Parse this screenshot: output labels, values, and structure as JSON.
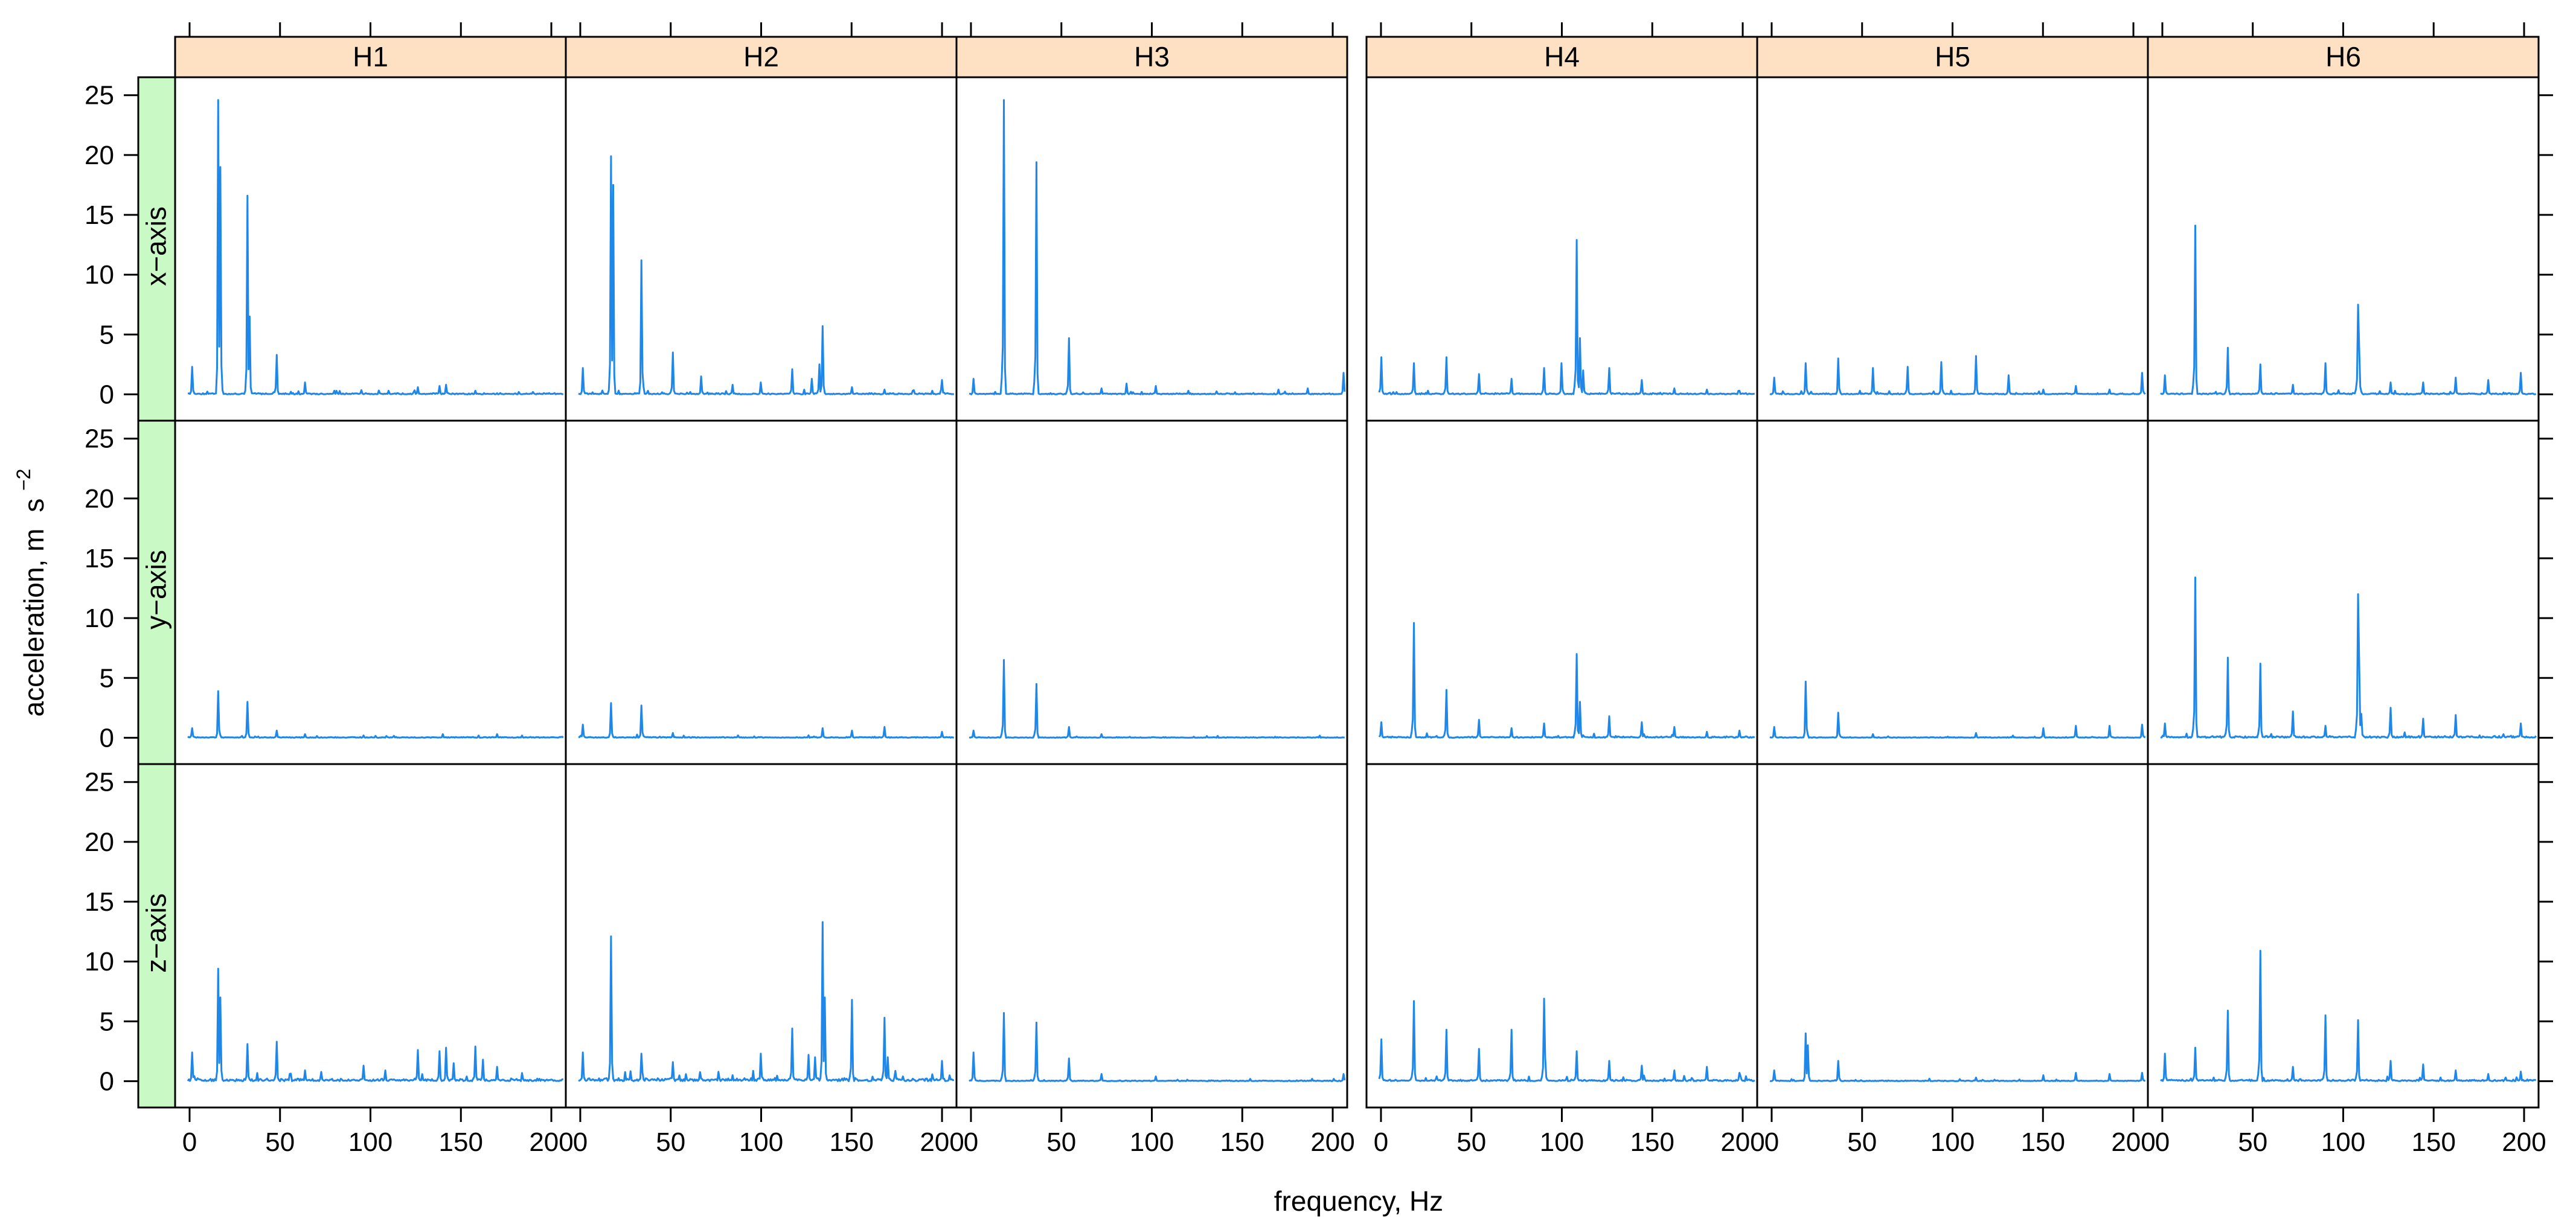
{
  "chart_data": {
    "type": "line",
    "xlabel": "frequency, Hz",
    "ylabel": "acceleration, m",
    "ylabel_unit": "s",
    "ylabel_exponent": "−2",
    "xlim": [
      -8,
      208
    ],
    "ylim": [
      -2.2,
      26.5
    ],
    "x_ticks": [
      0,
      50,
      100,
      150,
      200
    ],
    "x_tick_labels": [
      "0",
      "50",
      "100",
      "150",
      "200"
    ],
    "y_ticks": [
      0,
      5,
      10,
      15,
      20,
      25
    ],
    "y_tick_labels": [
      "0",
      "5",
      "10",
      "15",
      "20",
      "25"
    ],
    "columns": [
      "H1",
      "H2",
      "H3",
      "H4",
      "H5",
      "H6"
    ],
    "rows": [
      "x−axis",
      "y−axis",
      "z−axis"
    ],
    "series_color": "#1f87e8",
    "panels": [
      {
        "column": "H1",
        "row": "x−axis",
        "noise": 0.12,
        "peaks": [
          [
            1.5,
            2.3
          ],
          [
            16,
            24.6
          ],
          [
            17,
            19
          ],
          [
            32,
            16.6
          ],
          [
            33,
            6.5
          ],
          [
            48,
            3.3
          ],
          [
            64,
            1.0
          ],
          [
            80,
            0.3
          ],
          [
            95,
            0.35
          ],
          [
            110,
            0.3
          ],
          [
            126,
            0.6
          ],
          [
            138,
            0.7
          ],
          [
            142,
            0.8
          ],
          [
            158,
            0.3
          ],
          [
            190,
            0.2
          ]
        ]
      },
      {
        "column": "H2",
        "row": "x−axis",
        "noise": 0.12,
        "peaks": [
          [
            1.5,
            2.2
          ],
          [
            17,
            19.9
          ],
          [
            18,
            17.5
          ],
          [
            34,
            11.2
          ],
          [
            51,
            3.5
          ],
          [
            67,
            1.5
          ],
          [
            84,
            0.8
          ],
          [
            100,
            1.0
          ],
          [
            117,
            2.1
          ],
          [
            128,
            1.3
          ],
          [
            132,
            2.5
          ],
          [
            134,
            5.7
          ],
          [
            150,
            0.6
          ],
          [
            168,
            0.4
          ],
          [
            184,
            0.3
          ],
          [
            200,
            1.2
          ]
        ]
      },
      {
        "column": "H3",
        "row": "x−axis",
        "noise": 0.1,
        "peaks": [
          [
            1.5,
            1.3
          ],
          [
            18,
            24.6
          ],
          [
            36,
            19.4
          ],
          [
            54,
            4.7
          ],
          [
            72,
            0.5
          ],
          [
            86,
            0.9
          ],
          [
            102,
            0.7
          ],
          [
            120,
            0.3
          ],
          [
            136,
            0.25
          ],
          [
            170,
            0.4
          ],
          [
            186,
            0.5
          ],
          [
            206,
            1.8
          ]
        ]
      },
      {
        "column": "H4",
        "row": "x−axis",
        "noise": 0.12,
        "peaks": [
          [
            0,
            3.1
          ],
          [
            18,
            2.6
          ],
          [
            36,
            3.1
          ],
          [
            54,
            1.7
          ],
          [
            72,
            1.3
          ],
          [
            90,
            2.2
          ],
          [
            100,
            2.6
          ],
          [
            108,
            12.9
          ],
          [
            110,
            4.7
          ],
          [
            112,
            2.0
          ],
          [
            126,
            2.2
          ],
          [
            144,
            1.2
          ],
          [
            162,
            0.5
          ],
          [
            180,
            0.4
          ],
          [
            198,
            0.3
          ]
        ]
      },
      {
        "column": "H5",
        "row": "x−axis",
        "noise": 0.1,
        "peaks": [
          [
            1.5,
            1.4
          ],
          [
            19,
            2.6
          ],
          [
            37,
            3.0
          ],
          [
            56,
            2.2
          ],
          [
            75,
            2.3
          ],
          [
            94,
            2.7
          ],
          [
            113,
            3.2
          ],
          [
            131,
            1.6
          ],
          [
            150,
            0.4
          ],
          [
            168,
            0.7
          ],
          [
            187,
            0.4
          ],
          [
            205,
            1.8
          ]
        ]
      },
      {
        "column": "H6",
        "row": "x−axis",
        "noise": 0.12,
        "peaks": [
          [
            1.5,
            1.6
          ],
          [
            18,
            14.1
          ],
          [
            36,
            3.9
          ],
          [
            54,
            2.5
          ],
          [
            72,
            0.8
          ],
          [
            90,
            2.6
          ],
          [
            108,
            7.5
          ],
          [
            109,
            4.0
          ],
          [
            126,
            1.0
          ],
          [
            144,
            1.0
          ],
          [
            162,
            1.4
          ],
          [
            180,
            1.2
          ],
          [
            198,
            1.8
          ]
        ]
      },
      {
        "column": "H1",
        "row": "y−axis",
        "noise": 0.08,
        "peaks": [
          [
            1.5,
            0.8
          ],
          [
            16,
            3.9
          ],
          [
            32,
            3.0
          ],
          [
            48,
            0.6
          ],
          [
            64,
            0.3
          ],
          [
            140,
            0.3
          ],
          [
            170,
            0.3
          ]
        ]
      },
      {
        "column": "H2",
        "row": "y−axis",
        "noise": 0.08,
        "peaks": [
          [
            1.5,
            1.1
          ],
          [
            17,
            2.9
          ],
          [
            34,
            2.7
          ],
          [
            51,
            0.4
          ],
          [
            134,
            0.8
          ],
          [
            150,
            0.6
          ],
          [
            168,
            0.9
          ],
          [
            200,
            0.5
          ]
        ]
      },
      {
        "column": "H3",
        "row": "y−axis",
        "noise": 0.06,
        "peaks": [
          [
            1.5,
            0.6
          ],
          [
            18,
            6.5
          ],
          [
            36,
            4.5
          ],
          [
            54,
            0.9
          ],
          [
            72,
            0.3
          ]
        ]
      },
      {
        "column": "H4",
        "row": "y−axis",
        "noise": 0.12,
        "peaks": [
          [
            0,
            1.3
          ],
          [
            18,
            9.6
          ],
          [
            36,
            4.0
          ],
          [
            54,
            1.5
          ],
          [
            72,
            0.8
          ],
          [
            90,
            1.2
          ],
          [
            108,
            7.0
          ],
          [
            110,
            3.0
          ],
          [
            126,
            1.8
          ],
          [
            144,
            1.3
          ],
          [
            162,
            0.9
          ],
          [
            180,
            0.5
          ],
          [
            198,
            0.6
          ]
        ]
      },
      {
        "column": "H5",
        "row": "y−axis",
        "noise": 0.06,
        "peaks": [
          [
            1.5,
            0.9
          ],
          [
            19,
            4.7
          ],
          [
            37,
            2.1
          ],
          [
            56,
            0.3
          ],
          [
            113,
            0.4
          ],
          [
            150,
            0.8
          ],
          [
            168,
            1.0
          ],
          [
            187,
            1.0
          ],
          [
            205,
            1.1
          ]
        ]
      },
      {
        "column": "H6",
        "row": "y−axis",
        "noise": 0.18,
        "peaks": [
          [
            1.5,
            1.2
          ],
          [
            18,
            13.4
          ],
          [
            36,
            6.7
          ],
          [
            54,
            6.2
          ],
          [
            72,
            2.2
          ],
          [
            90,
            1.0
          ],
          [
            108,
            12.0
          ],
          [
            109,
            6.5
          ],
          [
            110,
            2.0
          ],
          [
            126,
            2.5
          ],
          [
            144,
            1.6
          ],
          [
            162,
            1.9
          ],
          [
            198,
            1.2
          ]
        ]
      },
      {
        "column": "H1",
        "row": "z−axis",
        "noise": 0.25,
        "peaks": [
          [
            1.5,
            2.4
          ],
          [
            16,
            9.4
          ],
          [
            17,
            7.0
          ],
          [
            32,
            3.1
          ],
          [
            48,
            3.3
          ],
          [
            64,
            0.9
          ],
          [
            96,
            1.3
          ],
          [
            108,
            0.9
          ],
          [
            126,
            2.6
          ],
          [
            138,
            2.5
          ],
          [
            142,
            2.8
          ],
          [
            146,
            1.5
          ],
          [
            158,
            2.9
          ],
          [
            162,
            1.8
          ],
          [
            170,
            1.2
          ]
        ]
      },
      {
        "column": "H2",
        "row": "z−axis",
        "noise": 0.3,
        "peaks": [
          [
            1.5,
            2.4
          ],
          [
            17,
            12.1
          ],
          [
            34,
            2.3
          ],
          [
            51,
            1.6
          ],
          [
            84,
            0.5
          ],
          [
            100,
            2.3
          ],
          [
            117,
            4.4
          ],
          [
            126,
            2.2
          ],
          [
            130,
            2.0
          ],
          [
            134,
            13.3
          ],
          [
            135,
            7.0
          ],
          [
            150,
            6.8
          ],
          [
            168,
            5.3
          ],
          [
            170,
            2.0
          ],
          [
            200,
            1.7
          ]
        ]
      },
      {
        "column": "H3",
        "row": "z−axis",
        "noise": 0.08,
        "peaks": [
          [
            1.5,
            2.4
          ],
          [
            18,
            5.7
          ],
          [
            36,
            4.9
          ],
          [
            54,
            1.9
          ],
          [
            72,
            0.6
          ],
          [
            102,
            0.4
          ],
          [
            206,
            0.6
          ]
        ]
      },
      {
        "column": "H4",
        "row": "z−axis",
        "noise": 0.15,
        "peaks": [
          [
            0,
            3.5
          ],
          [
            18,
            6.7
          ],
          [
            36,
            4.3
          ],
          [
            54,
            2.7
          ],
          [
            72,
            4.3
          ],
          [
            90,
            6.9
          ],
          [
            91,
            2.0
          ],
          [
            108,
            2.5
          ],
          [
            126,
            1.7
          ],
          [
            144,
            1.3
          ],
          [
            162,
            0.9
          ],
          [
            180,
            1.2
          ],
          [
            198,
            0.7
          ]
        ]
      },
      {
        "column": "H5",
        "row": "z−axis",
        "noise": 0.07,
        "peaks": [
          [
            1.5,
            0.9
          ],
          [
            19,
            4.0
          ],
          [
            20,
            3.0
          ],
          [
            37,
            1.7
          ],
          [
            113,
            0.3
          ],
          [
            150,
            0.5
          ],
          [
            168,
            0.7
          ],
          [
            187,
            0.6
          ],
          [
            205,
            0.7
          ]
        ]
      },
      {
        "column": "H6",
        "row": "z−axis",
        "noise": 0.15,
        "peaks": [
          [
            1.5,
            2.3
          ],
          [
            18,
            2.8
          ],
          [
            36,
            5.9
          ],
          [
            54,
            10.9
          ],
          [
            72,
            1.2
          ],
          [
            90,
            5.5
          ],
          [
            108,
            5.1
          ],
          [
            126,
            1.7
          ],
          [
            144,
            1.4
          ],
          [
            162,
            0.9
          ],
          [
            180,
            0.6
          ],
          [
            198,
            0.8
          ]
        ]
      }
    ]
  }
}
